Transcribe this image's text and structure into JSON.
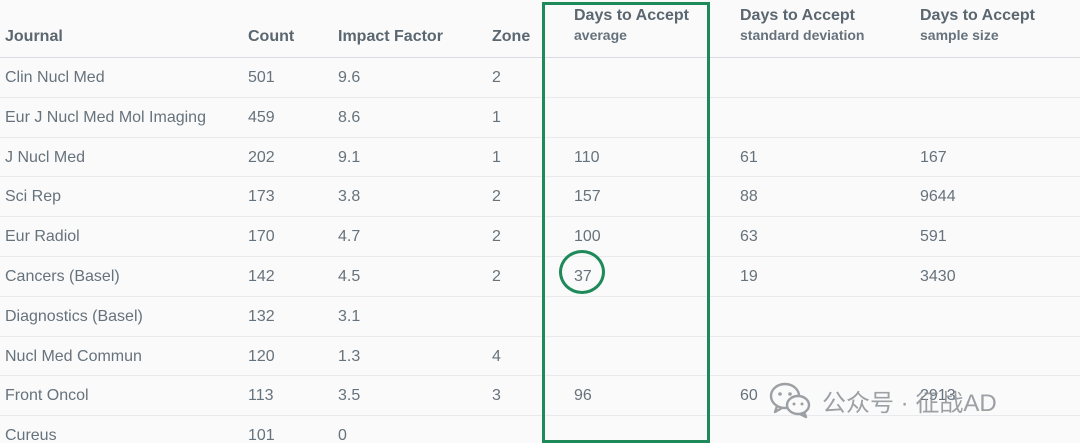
{
  "table": {
    "headers": {
      "journal": "Journal",
      "count": "Count",
      "impact_factor": "Impact Factor",
      "zone": "Zone",
      "avg_title": "Days to Accept",
      "avg_sub": "average",
      "sd_title": "Days to Accept",
      "sd_sub": "standard deviation",
      "n_title": "Days to Accept",
      "n_sub": "sample size"
    },
    "rows": [
      {
        "journal": "Clin Nucl Med",
        "count": "501",
        "impact_factor": "9.6",
        "zone": "2",
        "avg": "",
        "sd": "",
        "n": ""
      },
      {
        "journal": "Eur J Nucl Med Mol Imaging",
        "count": "459",
        "impact_factor": "8.6",
        "zone": "1",
        "avg": "",
        "sd": "",
        "n": ""
      },
      {
        "journal": "J Nucl Med",
        "count": "202",
        "impact_factor": "9.1",
        "zone": "1",
        "avg": "110",
        "sd": "61",
        "n": "167"
      },
      {
        "journal": "Sci Rep",
        "count": "173",
        "impact_factor": "3.8",
        "zone": "2",
        "avg": "157",
        "sd": "88",
        "n": "9644"
      },
      {
        "journal": "Eur Radiol",
        "count": "170",
        "impact_factor": "4.7",
        "zone": "2",
        "avg": "100",
        "sd": "63",
        "n": "591"
      },
      {
        "journal": "Cancers (Basel)",
        "count": "142",
        "impact_factor": "4.5",
        "zone": "2",
        "avg": "37",
        "sd": "19",
        "n": "3430"
      },
      {
        "journal": "Diagnostics (Basel)",
        "count": "132",
        "impact_factor": "3.1",
        "zone": "",
        "avg": "",
        "sd": "",
        "n": ""
      },
      {
        "journal": "Nucl Med Commun",
        "count": "120",
        "impact_factor": "1.3",
        "zone": "4",
        "avg": "",
        "sd": "",
        "n": ""
      },
      {
        "journal": "Front Oncol",
        "count": "113",
        "impact_factor": "3.5",
        "zone": "3",
        "avg": "96",
        "sd": "60",
        "n": "2913"
      },
      {
        "journal": "Cureus",
        "count": "101",
        "impact_factor": "0",
        "zone": "",
        "avg": "",
        "sd": "",
        "n": ""
      }
    ]
  },
  "annotations": {
    "box_color": "#1e8a5a",
    "circled_value": "37"
  },
  "watermark": {
    "text": "公众号 · 征战AD",
    "icon": "wechat-icon"
  }
}
